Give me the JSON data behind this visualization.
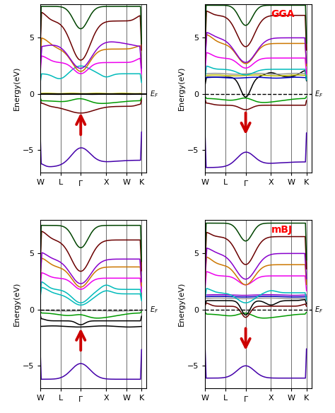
{
  "fig_width": 4.74,
  "fig_height": 5.84,
  "dpi": 100,
  "nk": 300,
  "ylim": [
    -7,
    8
  ],
  "yticks": [
    -5,
    0,
    5
  ],
  "ylabel": "Energy(eV)",
  "GGA_label": "GGA",
  "mBJ_label": "mBJ",
  "k_positions": [
    0.0,
    0.2,
    0.4,
    0.65,
    0.85,
    1.0
  ],
  "k_labels": [
    "W",
    "L",
    "Γ",
    "X",
    "W",
    "K"
  ],
  "k_vlines": [
    0.2,
    0.4,
    0.65,
    0.85,
    1.0
  ],
  "xlim": [
    0.0,
    1.05
  ],
  "color_map": {
    "purple_deep": "#4400aa",
    "maroon": "#6b0000",
    "green": "#009900",
    "darkgreen": "#004400",
    "cyan": "#00bbbb",
    "magenta": "#ee00ee",
    "orange": "#cc7700",
    "purple": "#8800cc",
    "black": "#000000",
    "blue": "#0000bb",
    "yellow": "#bbbb00",
    "gray": "#999999",
    "red_arrow": "#cc0000",
    "teal": "#007777"
  }
}
